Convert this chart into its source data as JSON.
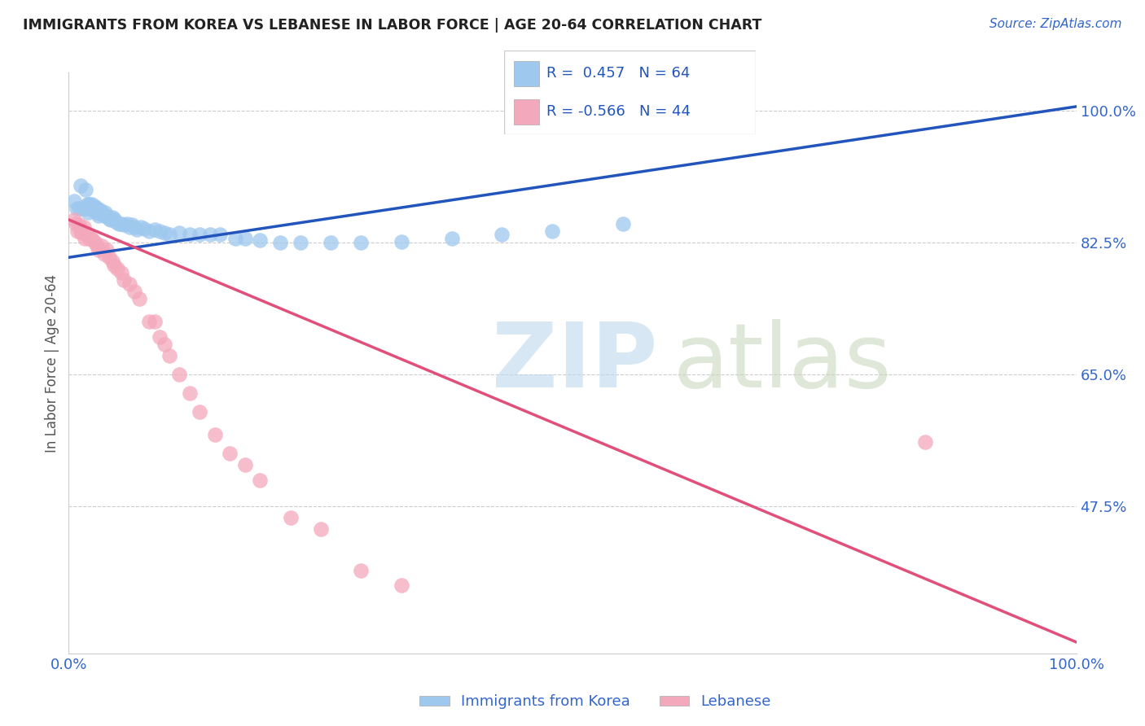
{
  "title": "IMMIGRANTS FROM KOREA VS LEBANESE IN LABOR FORCE | AGE 20-64 CORRELATION CHART",
  "source": "Source: ZipAtlas.com",
  "ylabel": "In Labor Force | Age 20-64",
  "xlim": [
    0.0,
    1.0
  ],
  "ylim": [
    0.28,
    1.05
  ],
  "x_tick_labels": [
    "0.0%",
    "100.0%"
  ],
  "y_tick_labels": [
    "47.5%",
    "65.0%",
    "82.5%",
    "100.0%"
  ],
  "y_tick_values": [
    0.475,
    0.65,
    0.825,
    1.0
  ],
  "legend_korea_r": "0.457",
  "legend_korea_n": "64",
  "legend_leb_r": "-0.566",
  "legend_leb_n": "44",
  "color_korea": "#9EC8EE",
  "color_lebanese": "#F4A8BB",
  "color_trend_korea": "#2255BB",
  "color_trend_lebanese": "#E0507A",
  "korea_trend_x0": 0.0,
  "korea_trend_y0": 0.805,
  "korea_trend_x1": 1.0,
  "korea_trend_y1": 1.005,
  "leb_trend_x0": 0.0,
  "leb_trend_y0": 0.855,
  "leb_trend_x1": 1.0,
  "leb_trend_y1": 0.295,
  "korea_x": [
    0.005,
    0.008,
    0.01,
    0.012,
    0.013,
    0.015,
    0.016,
    0.017,
    0.018,
    0.019,
    0.02,
    0.02,
    0.021,
    0.022,
    0.023,
    0.024,
    0.025,
    0.026,
    0.027,
    0.028,
    0.03,
    0.031,
    0.032,
    0.033,
    0.035,
    0.036,
    0.038,
    0.04,
    0.042,
    0.043,
    0.045,
    0.047,
    0.05,
    0.052,
    0.055,
    0.058,
    0.06,
    0.063,
    0.065,
    0.068,
    0.072,
    0.075,
    0.08,
    0.085,
    0.09,
    0.095,
    0.1,
    0.11,
    0.12,
    0.13,
    0.14,
    0.15,
    0.165,
    0.175,
    0.19,
    0.21,
    0.23,
    0.26,
    0.29,
    0.33,
    0.38,
    0.43,
    0.48,
    0.55
  ],
  "korea_y": [
    0.88,
    0.87,
    0.87,
    0.9,
    0.87,
    0.87,
    0.87,
    0.895,
    0.875,
    0.865,
    0.875,
    0.87,
    0.875,
    0.87,
    0.875,
    0.868,
    0.87,
    0.872,
    0.865,
    0.87,
    0.86,
    0.868,
    0.865,
    0.862,
    0.86,
    0.865,
    0.86,
    0.856,
    0.855,
    0.858,
    0.856,
    0.852,
    0.85,
    0.85,
    0.848,
    0.85,
    0.845,
    0.848,
    0.845,
    0.842,
    0.845,
    0.843,
    0.84,
    0.842,
    0.84,
    0.838,
    0.836,
    0.838,
    0.835,
    0.835,
    0.836,
    0.835,
    0.83,
    0.83,
    0.828,
    0.825,
    0.825,
    0.825,
    0.825,
    0.826,
    0.83,
    0.835,
    0.84,
    0.85
  ],
  "lebanese_x": [
    0.005,
    0.007,
    0.009,
    0.01,
    0.012,
    0.013,
    0.015,
    0.016,
    0.018,
    0.02,
    0.022,
    0.024,
    0.026,
    0.028,
    0.03,
    0.033,
    0.035,
    0.038,
    0.04,
    0.043,
    0.045,
    0.048,
    0.052,
    0.055,
    0.06,
    0.065,
    0.07,
    0.08,
    0.085,
    0.09,
    0.095,
    0.1,
    0.11,
    0.12,
    0.13,
    0.145,
    0.16,
    0.175,
    0.19,
    0.22,
    0.25,
    0.29,
    0.33,
    0.85
  ],
  "lebanese_y": [
    0.855,
    0.85,
    0.84,
    0.848,
    0.84,
    0.838,
    0.845,
    0.83,
    0.835,
    0.83,
    0.83,
    0.828,
    0.825,
    0.82,
    0.815,
    0.82,
    0.81,
    0.815,
    0.805,
    0.8,
    0.795,
    0.79,
    0.785,
    0.775,
    0.77,
    0.76,
    0.75,
    0.72,
    0.72,
    0.7,
    0.69,
    0.675,
    0.65,
    0.625,
    0.6,
    0.57,
    0.545,
    0.53,
    0.51,
    0.46,
    0.445,
    0.39,
    0.37,
    0.56
  ]
}
